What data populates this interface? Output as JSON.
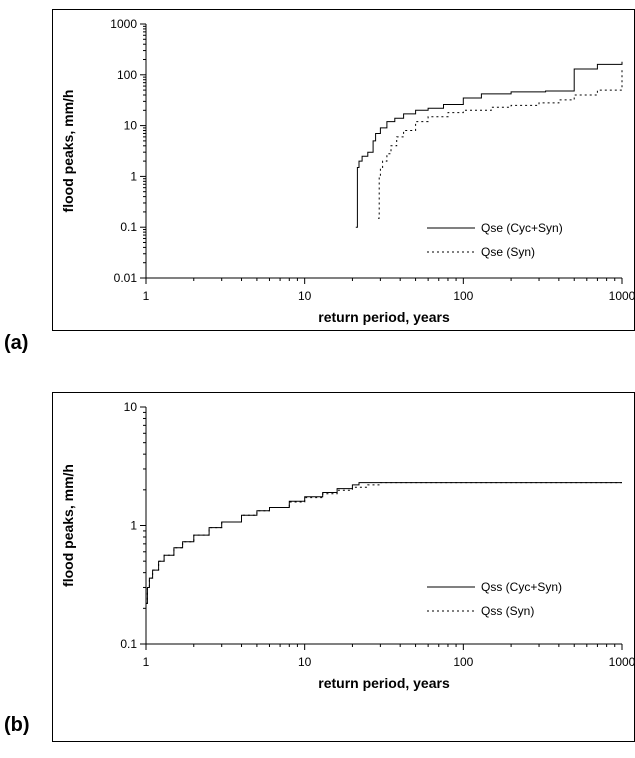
{
  "chart_data": [
    {
      "type": "line",
      "panel_label": "(a)",
      "xlabel": "return period, years",
      "ylabel": "flood peaks, mm/h",
      "xscale": "log",
      "yscale": "log",
      "xlim": [
        1,
        1000
      ],
      "ylim": [
        0.01,
        1000
      ],
      "xticks": [
        "1",
        "10",
        "100",
        "1000"
      ],
      "yticks": [
        "0.01",
        "0.1",
        "1",
        "10",
        "100",
        "1000"
      ],
      "legend_position": "lower-right",
      "grid": false,
      "series": [
        {
          "name": "Qse (Cyc+Syn)",
          "style": "solid",
          "x": [
            21,
            21.5,
            22,
            23,
            25,
            27,
            28,
            30,
            33,
            37,
            42,
            50,
            60,
            75,
            100,
            130,
            200,
            330,
            500,
            700,
            1000
          ],
          "y": [
            0.1,
            1.5,
            2,
            2.5,
            3,
            5,
            7,
            9,
            12,
            14,
            17,
            20,
            22,
            26,
            35,
            42,
            46,
            48,
            130,
            160,
            180
          ]
        },
        {
          "name": "Qse (Syn)",
          "style": "dashed",
          "x": [
            29,
            29.5,
            30,
            31,
            33,
            35,
            38,
            42,
            50,
            60,
            80,
            100,
            150,
            200,
            300,
            400,
            500,
            700,
            1000
          ],
          "y": [
            0.15,
            1,
            1.5,
            2,
            2.8,
            4,
            6,
            8,
            12,
            15,
            18,
            20,
            23,
            25,
            28,
            32,
            40,
            50,
            130
          ]
        }
      ]
    },
    {
      "type": "line",
      "panel_label": "(b)",
      "xlabel": "return period, years",
      "ylabel": "flood peaks, mm/h",
      "xscale": "log",
      "yscale": "log",
      "xlim": [
        1,
        1000
      ],
      "ylim": [
        0.1,
        10
      ],
      "xticks": [
        "1",
        "10",
        "100",
        "1000"
      ],
      "yticks": [
        "0.1",
        "1",
        "10"
      ],
      "legend_position": "lower-right",
      "grid": false,
      "series": [
        {
          "name": "Qss (Cyc+Syn)",
          "style": "solid",
          "x": [
            1,
            1.02,
            1.05,
            1.1,
            1.2,
            1.3,
            1.5,
            1.7,
            2,
            2.5,
            3,
            4,
            5,
            6,
            8,
            10,
            13,
            16,
            20,
            22,
            30,
            100,
            1000
          ],
          "y": [
            0.22,
            0.3,
            0.36,
            0.42,
            0.5,
            0.56,
            0.65,
            0.73,
            0.83,
            0.96,
            1.07,
            1.22,
            1.33,
            1.42,
            1.6,
            1.75,
            1.9,
            2.05,
            2.2,
            2.3,
            2.3,
            2.3,
            2.3
          ]
        },
        {
          "name": "Qss (Syn)",
          "style": "dashed",
          "x": [
            1,
            1.02,
            1.05,
            1.1,
            1.2,
            1.3,
            1.5,
            1.7,
            2,
            2.5,
            3,
            4,
            5,
            6,
            8,
            10,
            13,
            16,
            20,
            25,
            30,
            100,
            1000
          ],
          "y": [
            0.22,
            0.3,
            0.36,
            0.42,
            0.5,
            0.56,
            0.65,
            0.73,
            0.83,
            0.96,
            1.07,
            1.22,
            1.33,
            1.42,
            1.58,
            1.72,
            1.85,
            1.98,
            2.1,
            2.2,
            2.3,
            2.3,
            2.3
          ]
        }
      ]
    }
  ]
}
